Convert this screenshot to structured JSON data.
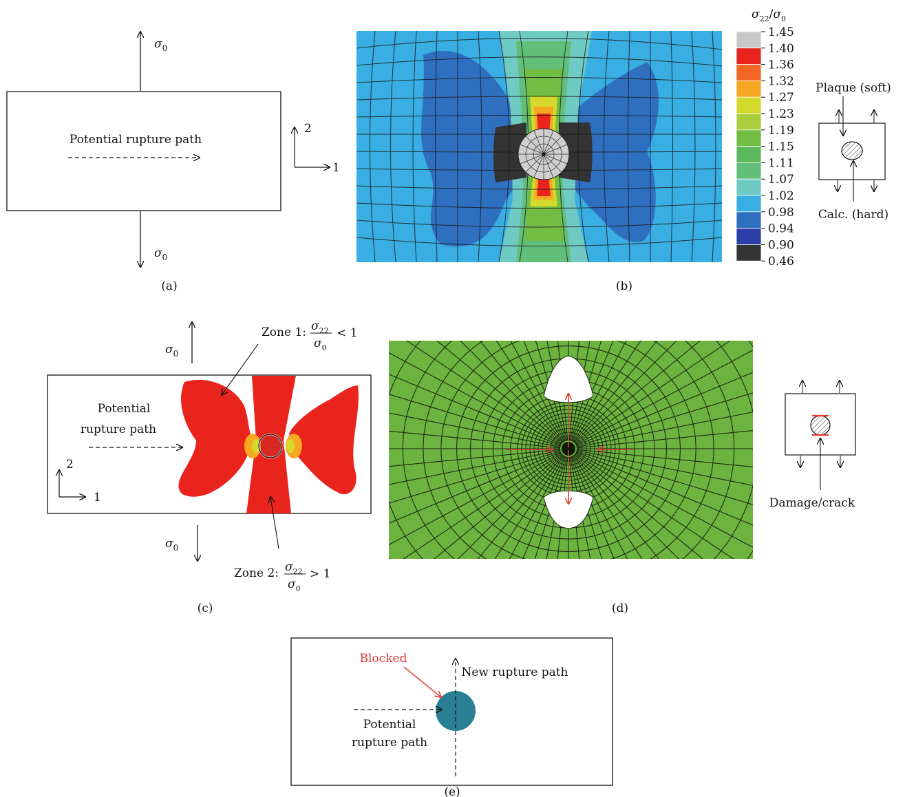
{
  "panel_a": {
    "caption": "(a)",
    "sigma_top": "σ",
    "sigma_top_sub": "0",
    "sigma_bottom": "σ",
    "sigma_bottom_sub": "0",
    "path_label": "Potential rupture path",
    "axis_1": "1",
    "axis_2": "2"
  },
  "panel_b": {
    "caption": "(b)",
    "legend_title_num": "σ",
    "legend_title_num_sub": "22",
    "legend_title_slash": "/",
    "legend_title_den": "σ",
    "legend_title_den_sub": "0",
    "legend_levels": [
      "1.45",
      "1.40",
      "1.36",
      "1.32",
      "1.27",
      "1.23",
      "1.19",
      "1.15",
      "1.11",
      "1.07",
      "1.02",
      "0.98",
      "0.94",
      "0.90",
      "0.46"
    ],
    "legend_colors": [
      "#c8c8c8",
      "#e8241c",
      "#f26522",
      "#f7a823",
      "#d4d92b",
      "#a9cd3c",
      "#72bd44",
      "#5cb85c",
      "#62bf7a",
      "#6fcac4",
      "#39aee3",
      "#2f6fc0",
      "#2c3fa8",
      "#333333"
    ],
    "inset_top_label": "Plaque (soft)",
    "inset_bottom_label": "Calc. (hard)"
  },
  "panel_c": {
    "caption": "(c)",
    "sigma_top": "σ",
    "sigma_top_sub": "0",
    "sigma_bottom": "σ",
    "sigma_bottom_sub": "0",
    "zone1_prefix": "Zone 1:",
    "zone1_num": "σ",
    "zone1_num_sub": "22",
    "zone1_den": "σ",
    "zone1_den_sub": "0",
    "zone1_rel": "< 1",
    "zone2_prefix": "Zone 2:",
    "zone2_num": "σ",
    "zone2_num_sub": "22",
    "zone2_den": "σ",
    "zone2_den_sub": "0",
    "zone2_rel": "> 1",
    "path_line1": "Potential",
    "path_line2": "rupture path",
    "axis_1": "1",
    "axis_2": "2"
  },
  "panel_d": {
    "caption": "(d)",
    "inset_label": "Damage/crack"
  },
  "panel_e": {
    "caption": "(e)",
    "blocked": "Blocked",
    "new_path": "New rupture path",
    "path_line1": "Potential",
    "path_line2": "rupture path"
  }
}
